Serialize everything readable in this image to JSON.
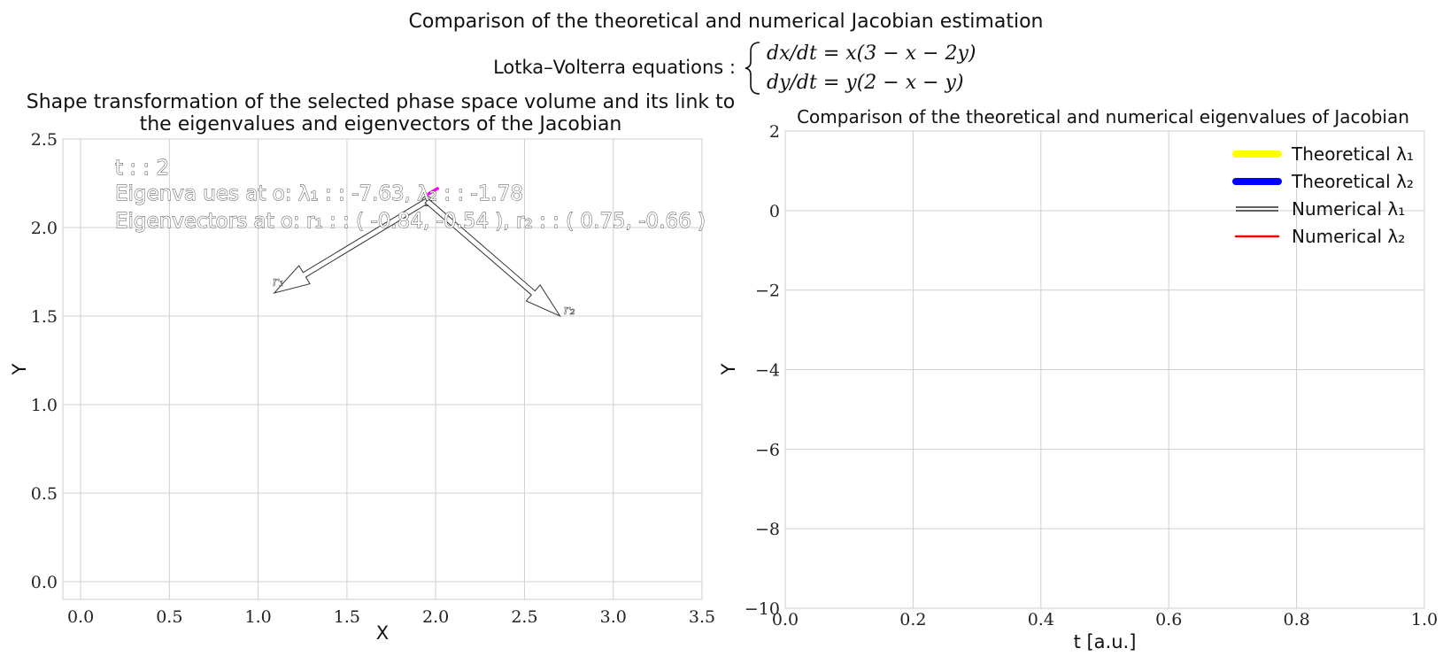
{
  "figure": {
    "title": "Comparison of the theoretical and numerical Jacobian estimation",
    "equations_label": "Lotka–Volterra equations :",
    "equation_1": "dx/dt = x(3 − x − 2y)",
    "equation_2": "dy/dt = y(2 − x − y)"
  },
  "chart_data": [
    {
      "type": "line",
      "title": "Shape transformation of the selected phase space volume and its link to the eigenvalues and eigenvectors of the Jacobian",
      "title_line1": "Shape transformation of the selected phase space volume and its link to",
      "title_line2": "the eigenvalues and eigenvectors of the Jacobian",
      "xlabel": "X",
      "ylabel": "Y",
      "xlim": [
        -0.1,
        3.5
      ],
      "ylim": [
        -0.1,
        2.5
      ],
      "xticks": [
        "0.0",
        "0.5",
        "1.0",
        "1.5",
        "2.0",
        "2.5",
        "3.0",
        "3.5"
      ],
      "yticks": [
        "0.0",
        "0.5",
        "1.0",
        "1.5",
        "2.0",
        "2.5"
      ],
      "xtick_values": [
        0,
        0.5,
        1,
        1.5,
        2,
        2.5,
        3,
        3.5
      ],
      "ytick_values": [
        0,
        0.5,
        1,
        1.5,
        2,
        2.5
      ],
      "grid": true,
      "annotations": {
        "time": "t : : 2",
        "eigenvalues": "Eigenva ues at o:  λ₁ : : -7.63,          λ₂ : : -1.78",
        "eigenvectors": "Eigenvectors at o:  r₁ : : ( -0.84, -0.54 ),  r₂ : : ( 0.75, -0.66 )"
      },
      "origin": [
        1.95,
        2.15
      ],
      "magenta_segment": {
        "from": [
          1.96,
          2.19
        ],
        "to": [
          2.01,
          2.22
        ],
        "color": "#ff00ff"
      },
      "vectors": [
        {
          "name": "r₁",
          "label": "r₁",
          "tip": [
            1.09,
            1.63
          ]
        },
        {
          "name": "r₂",
          "label": "r₂",
          "tip": [
            2.7,
            1.5
          ]
        }
      ]
    },
    {
      "type": "line",
      "title": "Comparison of the theoretical and numerical eigenvalues of Jacobian",
      "xlabel": "t [a.u.]",
      "ylabel": "Y",
      "xlim": [
        0,
        1
      ],
      "ylim": [
        -10,
        2
      ],
      "xticks": [
        "0.0",
        "0.2",
        "0.4",
        "0.6",
        "0.8",
        "1.0"
      ],
      "yticks": [
        "2",
        "0",
        "−2",
        "−4",
        "−6",
        "−8",
        "−10"
      ],
      "xtick_values": [
        0,
        0.2,
        0.4,
        0.6,
        0.8,
        1.0
      ],
      "ytick_values": [
        2,
        0,
        -2,
        -4,
        -6,
        -8,
        -10
      ],
      "grid": true,
      "legend_position": "top-right",
      "series": [
        {
          "name": "Theoretical λ₁",
          "values": [],
          "color": "#ffff00"
        },
        {
          "name": "Theoretical λ₂",
          "values": [],
          "color": "#0000ff"
        },
        {
          "name": "Numerical λ₁",
          "values": [],
          "color": "#000000"
        },
        {
          "name": "Numerical λ₂",
          "values": [],
          "color": "#ff0000"
        }
      ]
    }
  ]
}
